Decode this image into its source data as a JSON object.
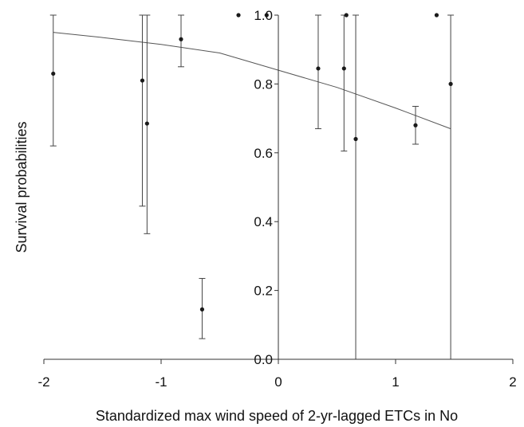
{
  "chart_data": {
    "type": "scatter",
    "title": "",
    "xlabel": "Standardized max wind speed of 2-yr-lagged ETCs in No",
    "ylabel": "Survival probabilities",
    "xlim": [
      -2,
      2
    ],
    "ylim": [
      0,
      1.0
    ],
    "x_ticks": [
      -2,
      -1,
      0,
      1,
      2
    ],
    "x_tick_labels": [
      "-2",
      "-1",
      "0",
      "1",
      "2"
    ],
    "y_ticks": [
      0.0,
      0.2,
      0.4,
      0.6,
      0.8,
      1.0
    ],
    "y_tick_labels": [
      "0.0",
      "0.2",
      "0.4",
      "0.6",
      "0.8",
      "1.0"
    ],
    "y_axis_at_x": 0,
    "grid": false,
    "legend": "none",
    "point_color": "#1a1a1a",
    "line_color": "#555555",
    "points": [
      {
        "x": -1.92,
        "y": 0.83,
        "lo": 0.62,
        "hi": 1.0
      },
      {
        "x": -1.16,
        "y": 0.81,
        "lo": 0.445,
        "hi": 1.0
      },
      {
        "x": -1.12,
        "y": 0.685,
        "lo": 0.365,
        "hi": 1.0
      },
      {
        "x": -0.83,
        "y": 0.93,
        "lo": 0.85,
        "hi": 1.0
      },
      {
        "x": -0.65,
        "y": 0.145,
        "lo": 0.06,
        "hi": 0.235
      },
      {
        "x": -0.34,
        "y": 1.0,
        "lo": 1.0,
        "hi": 1.0
      },
      {
        "x": -0.1,
        "y": 1.0,
        "lo": 1.0,
        "hi": 1.0
      },
      {
        "x": 0.34,
        "y": 0.845,
        "lo": 0.67,
        "hi": 1.0
      },
      {
        "x": 0.56,
        "y": 0.845,
        "lo": 0.605,
        "hi": 1.0
      },
      {
        "x": 0.58,
        "y": 1.0,
        "lo": 1.0,
        "hi": 1.0
      },
      {
        "x": 0.66,
        "y": 0.64,
        "lo": 0.0,
        "hi": 1.0
      },
      {
        "x": 1.17,
        "y": 0.68,
        "lo": 0.625,
        "hi": 0.735
      },
      {
        "x": 1.35,
        "y": 1.0,
        "lo": 1.0,
        "hi": 1.0
      },
      {
        "x": 1.47,
        "y": 0.8,
        "lo": 0.0,
        "hi": 1.0
      }
    ],
    "fit_line": {
      "x": [
        -1.92,
        -1.5,
        -1.0,
        -0.5,
        0.0,
        0.5,
        1.0,
        1.47
      ],
      "y": [
        0.95,
        0.935,
        0.915,
        0.89,
        0.84,
        0.79,
        0.73,
        0.67
      ]
    }
  }
}
